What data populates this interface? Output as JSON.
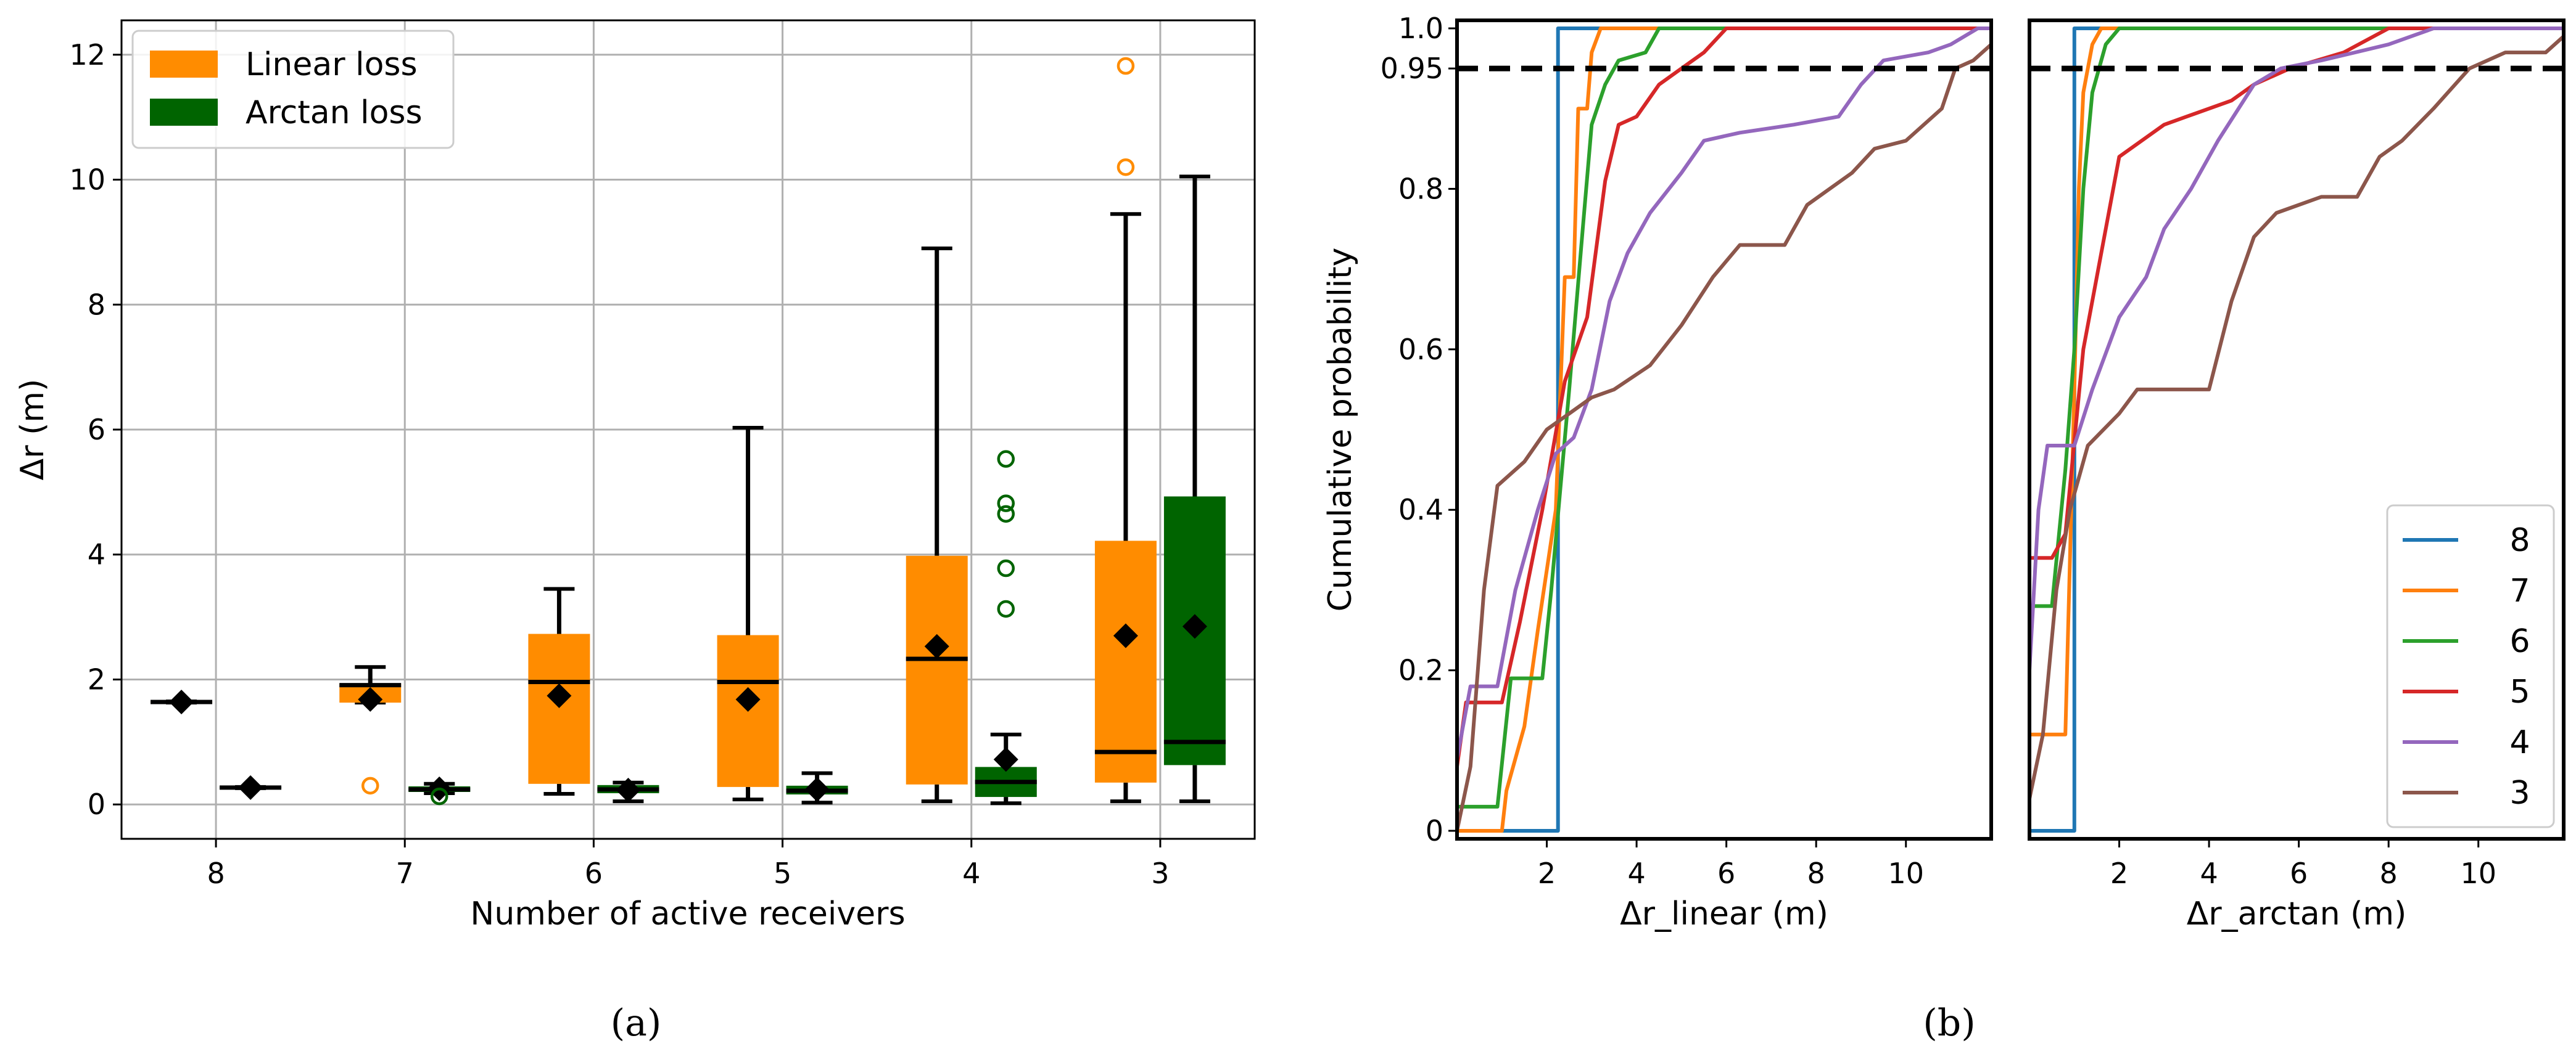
{
  "colors": {
    "linear": "#ff8c00",
    "arctan": "#006400",
    "cdf": {
      "8": "#1f77b4",
      "7": "#ff7f0e",
      "6": "#2ca02c",
      "5": "#d62728",
      "4": "#9467bd",
      "3": "#8c564b"
    },
    "grid": "#b0b0b0"
  },
  "captions": {
    "a": "(a)",
    "b": "(b)"
  },
  "chart_data": [
    {
      "id": "a",
      "type": "box",
      "xlabel": "Number of active receivers",
      "ylabel": "Δr (m)",
      "ylim": [
        -0.55,
        12.55
      ],
      "yticks": [
        0,
        2,
        4,
        6,
        8,
        10,
        12
      ],
      "categories": [
        "8",
        "7",
        "6",
        "5",
        "4",
        "3"
      ],
      "legend": {
        "position": "top-left",
        "entries": [
          "Linear loss",
          "Arctan loss"
        ]
      },
      "grid": true,
      "series": [
        {
          "name": "Linear loss",
          "boxes": [
            {
              "category": "8",
              "q1": 1.63,
              "median": 1.64,
              "q3": 1.65,
              "whislo": 1.63,
              "whishi": 1.65,
              "mean": 1.64,
              "fliers": []
            },
            {
              "category": "7",
              "q1": 1.63,
              "median": 1.91,
              "q3": 1.93,
              "whislo": 1.63,
              "whishi": 2.2,
              "mean": 1.68,
              "fliers": [
                0.3
              ]
            },
            {
              "category": "6",
              "q1": 0.33,
              "median": 1.96,
              "q3": 2.73,
              "whislo": 0.17,
              "whishi": 3.45,
              "mean": 1.74,
              "fliers": []
            },
            {
              "category": "5",
              "q1": 0.28,
              "median": 1.96,
              "q3": 2.71,
              "whislo": 0.08,
              "whishi": 6.03,
              "mean": 1.68,
              "fliers": []
            },
            {
              "category": "4",
              "q1": 0.32,
              "median": 2.33,
              "q3": 3.98,
              "whislo": 0.05,
              "whishi": 8.9,
              "mean": 2.53,
              "fliers": []
            },
            {
              "category": "3",
              "q1": 0.35,
              "median": 0.84,
              "q3": 4.22,
              "whislo": 0.05,
              "whishi": 9.45,
              "mean": 2.7,
              "fliers": [
                10.2,
                11.82
              ]
            }
          ]
        },
        {
          "name": "Arctan loss",
          "boxes": [
            {
              "category": "8",
              "q1": 0.26,
              "median": 0.27,
              "q3": 0.28,
              "whislo": 0.26,
              "whishi": 0.28,
              "mean": 0.27,
              "fliers": []
            },
            {
              "category": "7",
              "q1": 0.2,
              "median": 0.24,
              "q3": 0.29,
              "whislo": 0.18,
              "whishi": 0.33,
              "mean": 0.25,
              "fliers": [
                0.13
              ]
            },
            {
              "category": "6",
              "q1": 0.18,
              "median": 0.24,
              "q3": 0.31,
              "whislo": 0.05,
              "whishi": 0.35,
              "mean": 0.23,
              "fliers": []
            },
            {
              "category": "5",
              "q1": 0.16,
              "median": 0.22,
              "q3": 0.3,
              "whislo": 0.03,
              "whishi": 0.5,
              "mean": 0.24,
              "fliers": []
            },
            {
              "category": "4",
              "q1": 0.12,
              "median": 0.36,
              "q3": 0.6,
              "whislo": 0.02,
              "whishi": 1.12,
              "mean": 0.72,
              "fliers": [
                3.13,
                3.78,
                4.65,
                4.82,
                5.53
              ]
            },
            {
              "category": "3",
              "q1": 0.63,
              "median": 1.0,
              "q3": 4.93,
              "whislo": 0.05,
              "whishi": 10.05,
              "mean": 2.85,
              "fliers": []
            }
          ]
        }
      ]
    },
    {
      "id": "b-linear",
      "type": "line",
      "xlabel": "Δr_linear (m)",
      "ylabel": "Cumulative probability",
      "xlim": [
        0,
        11.9
      ],
      "ylim": [
        -0.01,
        1.01
      ],
      "xticks": [
        2,
        4,
        6,
        8,
        10
      ],
      "yticks": [
        0,
        0.2,
        0.4,
        0.6,
        0.8,
        0.95,
        1.0
      ],
      "ytick_labels": [
        "0",
        "0.2",
        "0.4",
        "0.6",
        "0.8",
        "0.95",
        "1.0"
      ],
      "reference_line": 0.95,
      "series": [
        {
          "name": "8",
          "points": [
            [
              0,
              0
            ],
            [
              2.25,
              0
            ],
            [
              2.25,
              1
            ],
            [
              11.9,
              1
            ]
          ]
        },
        {
          "name": "7",
          "points": [
            [
              0,
              0
            ],
            [
              1.0,
              0
            ],
            [
              1.1,
              0.05
            ],
            [
              1.5,
              0.13
            ],
            [
              1.8,
              0.25
            ],
            [
              2.2,
              0.4
            ],
            [
              2.4,
              0.69
            ],
            [
              2.6,
              0.69
            ],
            [
              2.7,
              0.9
            ],
            [
              2.9,
              0.9
            ],
            [
              3.0,
              0.97
            ],
            [
              3.2,
              1.0
            ],
            [
              11.9,
              1.0
            ]
          ]
        },
        {
          "name": "6",
          "points": [
            [
              0,
              0.03
            ],
            [
              0.9,
              0.03
            ],
            [
              1.2,
              0.19
            ],
            [
              1.9,
              0.19
            ],
            [
              2.1,
              0.3
            ],
            [
              2.5,
              0.55
            ],
            [
              2.8,
              0.75
            ],
            [
              3.0,
              0.88
            ],
            [
              3.3,
              0.93
            ],
            [
              3.6,
              0.96
            ],
            [
              4.2,
              0.97
            ],
            [
              4.5,
              1.0
            ],
            [
              11.9,
              1.0
            ]
          ]
        },
        {
          "name": "5",
          "points": [
            [
              0,
              0.08
            ],
            [
              0.2,
              0.16
            ],
            [
              1.0,
              0.16
            ],
            [
              1.4,
              0.26
            ],
            [
              1.9,
              0.4
            ],
            [
              2.4,
              0.56
            ],
            [
              2.9,
              0.64
            ],
            [
              3.3,
              0.81
            ],
            [
              3.6,
              0.88
            ],
            [
              4.0,
              0.89
            ],
            [
              4.5,
              0.93
            ],
            [
              5.0,
              0.95
            ],
            [
              5.5,
              0.97
            ],
            [
              6.0,
              1.0
            ],
            [
              11.9,
              1.0
            ]
          ]
        },
        {
          "name": "4",
          "points": [
            [
              0,
              0.09
            ],
            [
              0.3,
              0.18
            ],
            [
              0.9,
              0.18
            ],
            [
              1.3,
              0.3
            ],
            [
              1.8,
              0.4
            ],
            [
              2.2,
              0.47
            ],
            [
              2.6,
              0.49
            ],
            [
              3.0,
              0.55
            ],
            [
              3.4,
              0.66
            ],
            [
              3.8,
              0.72
            ],
            [
              4.3,
              0.77
            ],
            [
              5.0,
              0.82
            ],
            [
              5.5,
              0.86
            ],
            [
              6.3,
              0.87
            ],
            [
              7.5,
              0.88
            ],
            [
              8.5,
              0.89
            ],
            [
              9.0,
              0.93
            ],
            [
              9.5,
              0.96
            ],
            [
              10.5,
              0.97
            ],
            [
              11.0,
              0.98
            ],
            [
              11.6,
              1.0
            ],
            [
              11.9,
              1.0
            ]
          ]
        },
        {
          "name": "3",
          "points": [
            [
              0,
              0
            ],
            [
              0.3,
              0.08
            ],
            [
              0.6,
              0.3
            ],
            [
              0.9,
              0.43
            ],
            [
              1.5,
              0.46
            ],
            [
              2.0,
              0.5
            ],
            [
              2.5,
              0.52
            ],
            [
              3.0,
              0.54
            ],
            [
              3.5,
              0.55
            ],
            [
              4.3,
              0.58
            ],
            [
              5.0,
              0.63
            ],
            [
              5.7,
              0.69
            ],
            [
              6.3,
              0.73
            ],
            [
              7.3,
              0.73
            ],
            [
              7.8,
              0.78
            ],
            [
              8.3,
              0.8
            ],
            [
              8.8,
              0.82
            ],
            [
              9.3,
              0.85
            ],
            [
              10.0,
              0.86
            ],
            [
              10.8,
              0.9
            ],
            [
              11.1,
              0.95
            ],
            [
              11.5,
              0.96
            ],
            [
              11.9,
              0.98
            ]
          ]
        }
      ]
    },
    {
      "id": "b-arctan",
      "type": "line",
      "xlabel": "Δr_arctan (m)",
      "xlim": [
        0,
        11.9
      ],
      "ylim": [
        -0.01,
        1.01
      ],
      "xticks": [
        2,
        4,
        6,
        8,
        10
      ],
      "reference_line": 0.95,
      "legend": {
        "position": "bottom-right",
        "entries": [
          "8",
          "7",
          "6",
          "5",
          "4",
          "3"
        ]
      },
      "series": [
        {
          "name": "8",
          "points": [
            [
              0,
              0
            ],
            [
              1.0,
              0
            ],
            [
              1.0,
              1
            ],
            [
              11.9,
              1
            ]
          ]
        },
        {
          "name": "7",
          "points": [
            [
              0,
              0.12
            ],
            [
              0.8,
              0.12
            ],
            [
              1.0,
              0.55
            ],
            [
              1.1,
              0.8
            ],
            [
              1.2,
              0.92
            ],
            [
              1.4,
              0.98
            ],
            [
              1.6,
              1.0
            ],
            [
              11.9,
              1.0
            ]
          ]
        },
        {
          "name": "6",
          "points": [
            [
              0,
              0.28
            ],
            [
              0.5,
              0.28
            ],
            [
              0.8,
              0.45
            ],
            [
              1.0,
              0.6
            ],
            [
              1.2,
              0.8
            ],
            [
              1.4,
              0.92
            ],
            [
              1.7,
              0.98
            ],
            [
              2.0,
              1.0
            ],
            [
              11.9,
              1.0
            ]
          ]
        },
        {
          "name": "5",
          "points": [
            [
              0,
              0.34
            ],
            [
              0.5,
              0.34
            ],
            [
              0.8,
              0.37
            ],
            [
              1.2,
              0.6
            ],
            [
              1.6,
              0.72
            ],
            [
              2.0,
              0.84
            ],
            [
              2.5,
              0.86
            ],
            [
              3.0,
              0.88
            ],
            [
              3.5,
              0.89
            ],
            [
              4.5,
              0.91
            ],
            [
              5.0,
              0.93
            ],
            [
              5.8,
              0.95
            ],
            [
              7.0,
              0.97
            ],
            [
              8.0,
              1.0
            ],
            [
              11.9,
              1.0
            ]
          ]
        },
        {
          "name": "4",
          "points": [
            [
              0,
              0.2
            ],
            [
              0.2,
              0.4
            ],
            [
              0.4,
              0.48
            ],
            [
              1.0,
              0.48
            ],
            [
              1.4,
              0.55
            ],
            [
              2.0,
              0.64
            ],
            [
              2.6,
              0.69
            ],
            [
              3.0,
              0.75
            ],
            [
              3.6,
              0.8
            ],
            [
              4.2,
              0.86
            ],
            [
              5.0,
              0.93
            ],
            [
              5.6,
              0.95
            ],
            [
              6.5,
              0.96
            ],
            [
              8.0,
              0.98
            ],
            [
              9.0,
              1.0
            ],
            [
              11.9,
              1.0
            ]
          ]
        },
        {
          "name": "3",
          "points": [
            [
              0,
              0.04
            ],
            [
              0.3,
              0.12
            ],
            [
              0.6,
              0.3
            ],
            [
              0.9,
              0.4
            ],
            [
              1.3,
              0.48
            ],
            [
              2.0,
              0.52
            ],
            [
              2.4,
              0.55
            ],
            [
              4.0,
              0.55
            ],
            [
              4.5,
              0.66
            ],
            [
              5.0,
              0.74
            ],
            [
              5.5,
              0.77
            ],
            [
              6.5,
              0.79
            ],
            [
              7.3,
              0.79
            ],
            [
              7.8,
              0.84
            ],
            [
              8.3,
              0.86
            ],
            [
              9.0,
              0.9
            ],
            [
              9.8,
              0.95
            ],
            [
              10.6,
              0.97
            ],
            [
              11.5,
              0.97
            ],
            [
              11.9,
              0.99
            ]
          ]
        }
      ]
    }
  ]
}
